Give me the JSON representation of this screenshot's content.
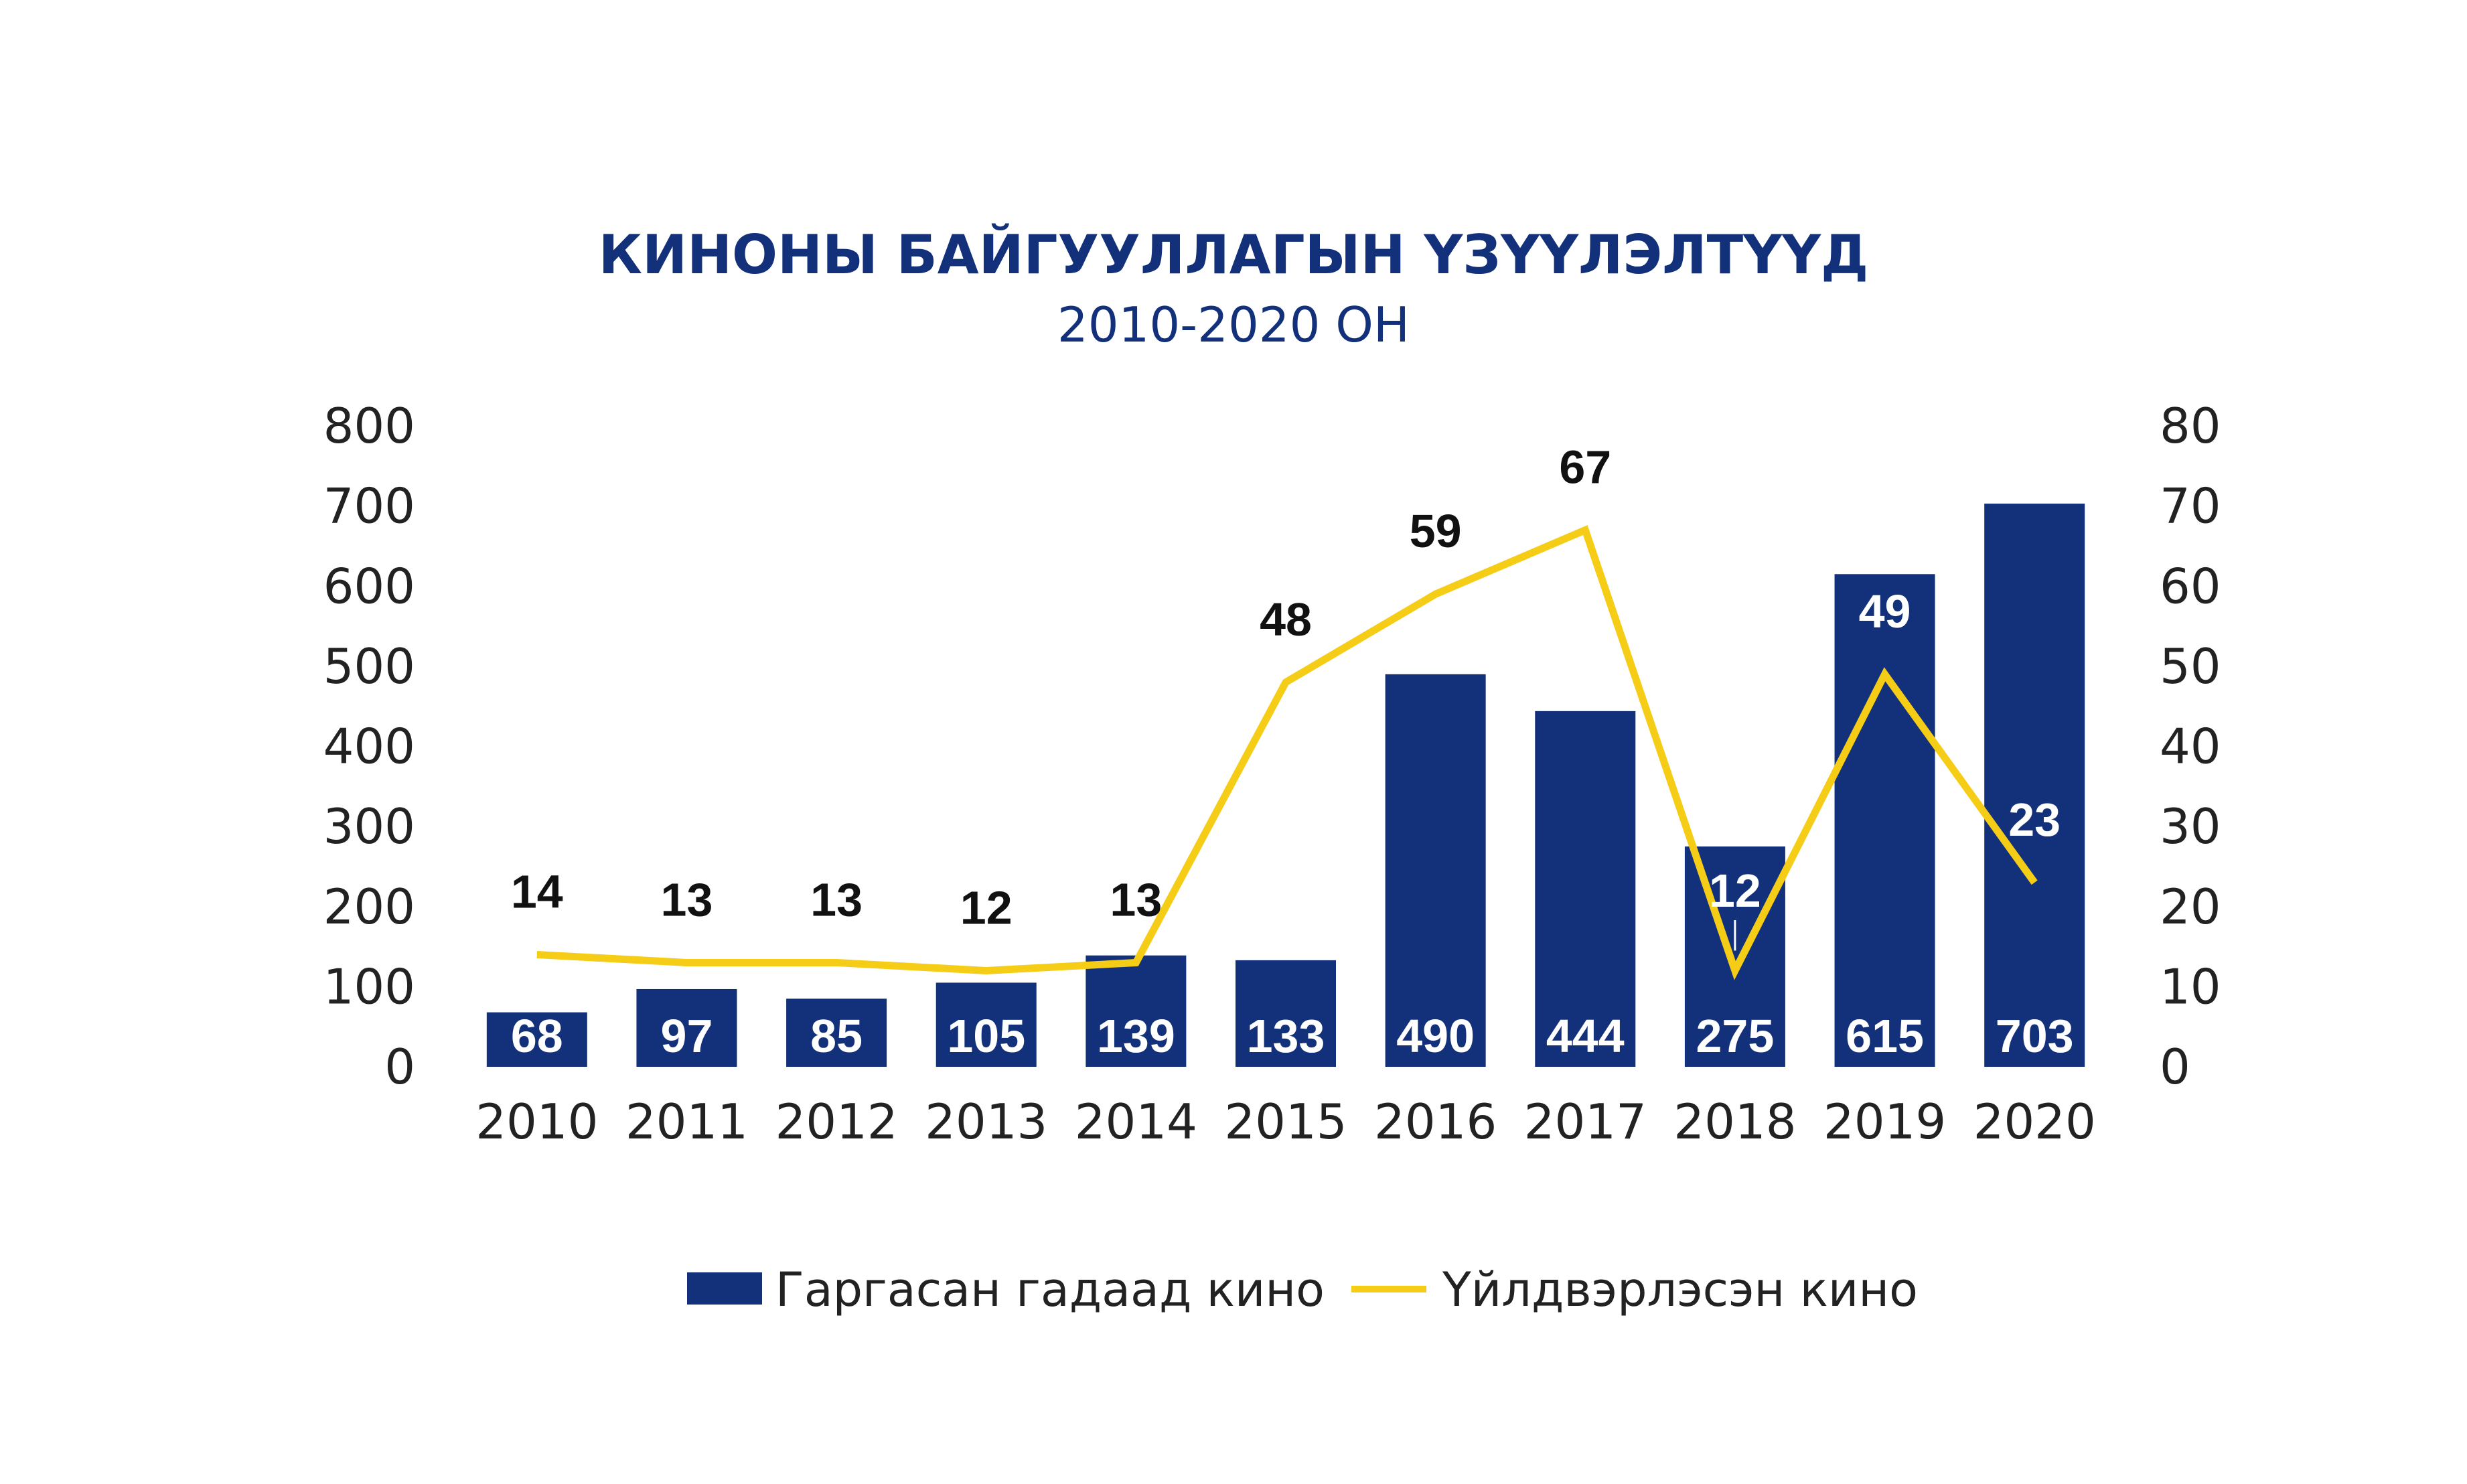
{
  "chart_data": {
    "type": "bar",
    "title": "КИНОНЫ БАЙГУУЛЛАГЫН ҮЗҮҮЛЭЛТҮҮД",
    "subtitle": "2010-2020 ОН",
    "categories": [
      "2010",
      "2011",
      "2012",
      "2013",
      "2014",
      "2015",
      "2016",
      "2017",
      "2018",
      "2019",
      "2020"
    ],
    "series": [
      {
        "name": "Гаргасан гадаад кино",
        "type": "bar",
        "axis": "left",
        "color": "#13307A",
        "values": [
          68,
          97,
          85,
          105,
          139,
          133,
          490,
          444,
          275,
          615,
          703
        ]
      },
      {
        "name": "Үйлдвэрлэсэн кино",
        "type": "line",
        "axis": "right",
        "color": "#F5CC16",
        "values": [
          14,
          13,
          13,
          12,
          13,
          48,
          59,
          67,
          12,
          49,
          23
        ]
      }
    ],
    "left_axis": {
      "ylim": [
        0,
        800
      ],
      "ticks": [
        "0",
        "100",
        "200",
        "300",
        "400",
        "500",
        "600",
        "700",
        "800"
      ]
    },
    "right_axis": {
      "ylim": [
        0,
        80
      ],
      "ticks": [
        "0",
        "10",
        "20",
        "30",
        "40",
        "50",
        "60",
        "70",
        "80"
      ]
    },
    "grid": false,
    "legend_position": "bottom",
    "title_color": "#13307A"
  }
}
